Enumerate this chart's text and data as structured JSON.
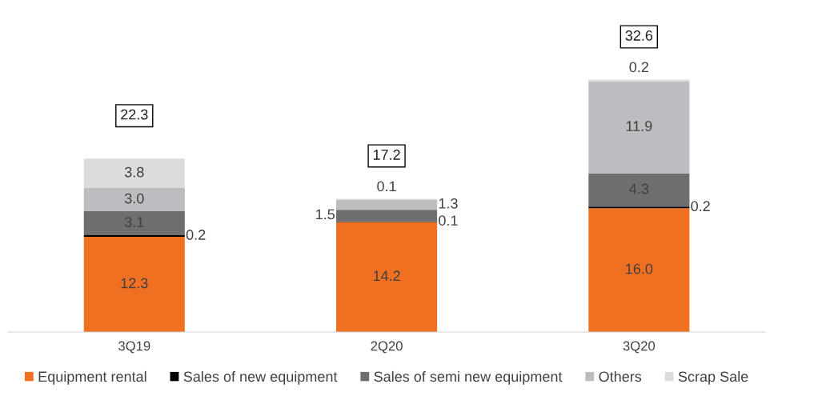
{
  "chart_data": {
    "type": "bar",
    "stacked": true,
    "categories": [
      "3Q19",
      "2Q20",
      "3Q20"
    ],
    "series": [
      {
        "name": "Equipment rental",
        "color": "#f07022",
        "values": [
          12.3,
          14.2,
          16.0
        ],
        "value_labels": [
          "12.3",
          "14.2",
          "16.0"
        ]
      },
      {
        "name": "Sales of new equipment",
        "color": "#000000",
        "values": [
          0.2,
          0.1,
          0.2
        ],
        "value_labels": [
          "0.2",
          "0.1",
          "0.2"
        ]
      },
      {
        "name": "Sales of semi new equipment",
        "color": "#6e6e6e",
        "values": [
          3.1,
          1.5,
          4.3
        ],
        "value_labels": [
          "3.1",
          "1.5",
          "4.3"
        ]
      },
      {
        "name": "Others",
        "color": "#bcbdc0",
        "values": [
          3.0,
          1.3,
          11.9
        ],
        "value_labels": [
          "3.0",
          "1.3",
          "11.9"
        ]
      },
      {
        "name": "Scrap Sale",
        "color": "#dcdcdc",
        "values": [
          3.8,
          0.1,
          0.2
        ],
        "value_labels": [
          "3.8",
          "0.1",
          "0.2"
        ]
      }
    ],
    "totals": [
      "22.3",
      "17.2",
      "32.6"
    ],
    "legend": "bottom",
    "grid": false
  }
}
